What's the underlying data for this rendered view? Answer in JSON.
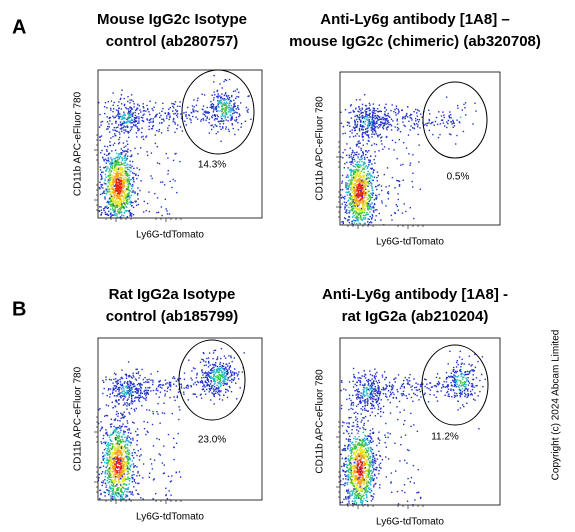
{
  "panel_labels": [
    "A",
    "B"
  ],
  "panels": [
    {
      "title_lines": [
        "Mouse IgG2c Isotype",
        "control (ab280757)"
      ],
      "y_label": "CD11b APC-eFluor 780",
      "x_label": "Ly6G-tdTomato",
      "gate_percent": "14.3%"
    },
    {
      "title_lines": [
        "Anti-Ly6g antibody [1A8] –",
        "mouse IgG2c (chimeric) (ab320708)"
      ],
      "y_label": "CD11b APC-eFluor 780",
      "x_label": "Ly6G-tdTomato",
      "gate_percent": "0.5%"
    },
    {
      "title_lines": [
        "Rat IgG2a Isotype",
        "control (ab185799)"
      ],
      "y_label": "CD11b APC-eFluor 780",
      "x_label": "Ly6G-tdTomato",
      "gate_percent": "23.0%"
    },
    {
      "title_lines": [
        "Anti-Ly6g antibody [1A8] -",
        "rat IgG2a (ab210204)"
      ],
      "y_label": "CD11b APC-eFluor 780",
      "x_label": "Ly6G-tdTomato",
      "gate_percent": "11.2%"
    }
  ],
  "copyright": "Copyright (c) 2024 Abcam Limited"
}
